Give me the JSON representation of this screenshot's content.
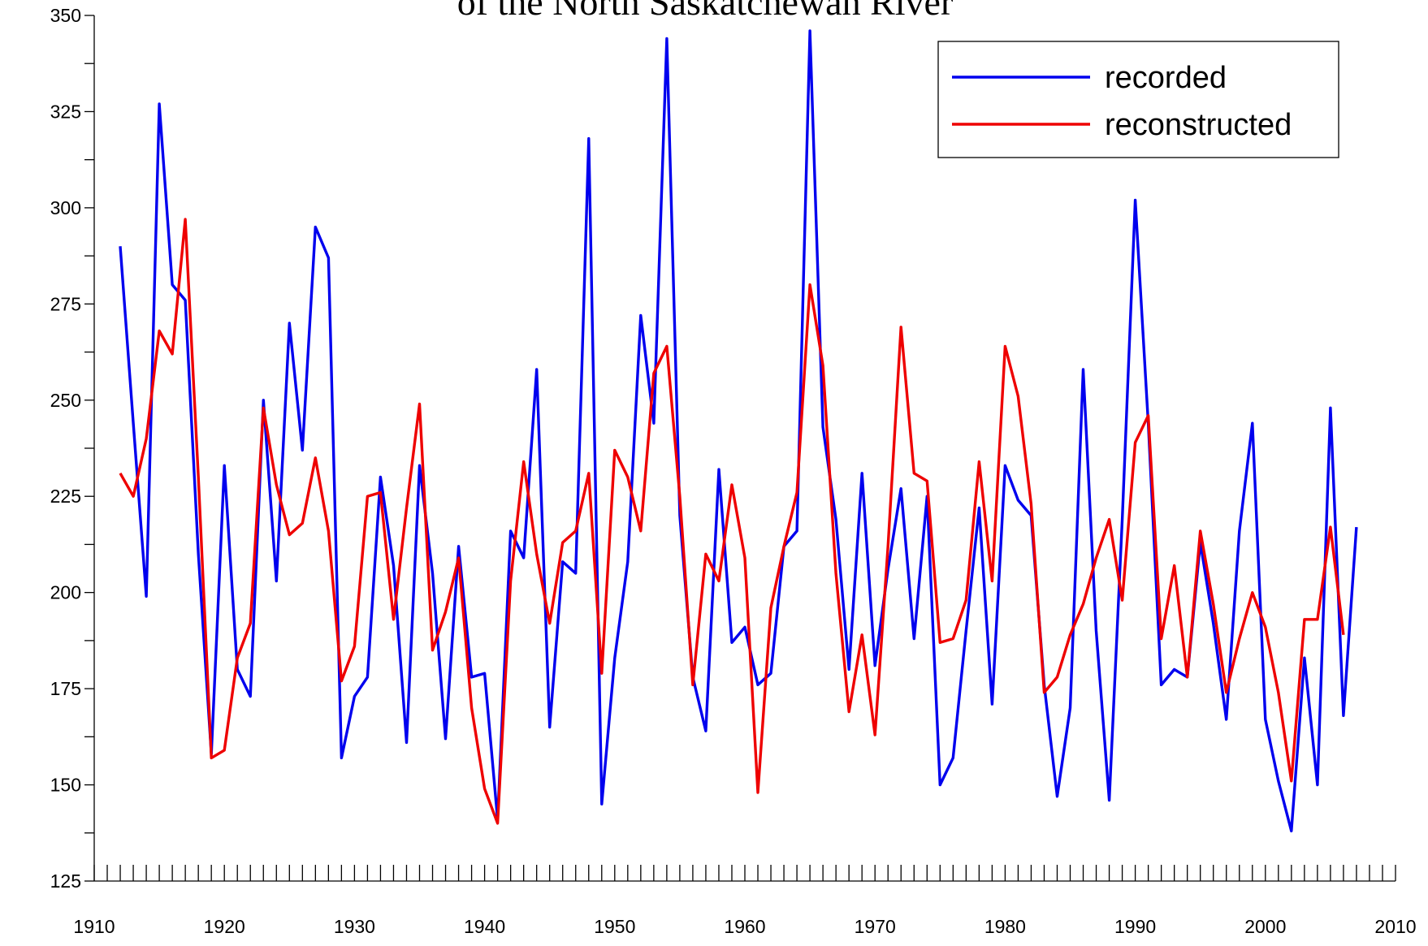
{
  "chart_data": {
    "type": "line",
    "title": "of the North Saskatchewan River",
    "x": [
      1912,
      1913,
      1914,
      1915,
      1916,
      1917,
      1918,
      1919,
      1920,
      1921,
      1922,
      1923,
      1924,
      1925,
      1926,
      1927,
      1928,
      1929,
      1930,
      1931,
      1932,
      1933,
      1934,
      1935,
      1936,
      1937,
      1938,
      1939,
      1940,
      1941,
      1942,
      1943,
      1944,
      1945,
      1946,
      1947,
      1948,
      1949,
      1950,
      1951,
      1952,
      1953,
      1954,
      1955,
      1956,
      1957,
      1958,
      1959,
      1960,
      1961,
      1962,
      1963,
      1964,
      1965,
      1966,
      1967,
      1968,
      1969,
      1970,
      1971,
      1972,
      1973,
      1974,
      1975,
      1976,
      1977,
      1978,
      1979,
      1980,
      1981,
      1982,
      1983,
      1984,
      1985,
      1986,
      1987,
      1988,
      1989,
      1990,
      1991,
      1992,
      1993,
      1994,
      1995,
      1996,
      1997,
      1998,
      1999,
      2000,
      2001,
      2002,
      2003,
      2004,
      2005,
      2006,
      2007
    ],
    "series": [
      {
        "name": "recorded",
        "color": "#0000ee",
        "values": [
          290,
          244,
          199,
          327,
          280,
          276,
          210,
          158,
          233,
          180,
          173,
          250,
          203,
          270,
          237,
          295,
          287,
          157,
          173,
          178,
          230,
          207,
          161,
          233,
          205,
          162,
          212,
          178,
          179,
          141,
          216,
          209,
          258,
          165,
          208,
          205,
          318,
          145,
          183,
          208,
          272,
          244,
          344,
          220,
          178,
          164,
          232,
          187,
          191,
          176,
          179,
          212,
          216,
          346,
          243,
          219,
          180,
          231,
          181,
          206,
          227,
          188,
          225,
          150,
          157,
          190,
          222,
          171,
          233,
          224,
          220,
          176,
          147,
          170,
          258,
          190,
          146,
          219,
          302,
          244,
          176,
          180,
          178,
          213,
          192,
          167,
          216,
          244,
          167,
          151,
          138,
          183,
          150,
          248,
          168,
          217
        ]
      },
      {
        "name": "reconstructed",
        "color": "#ee0000",
        "values": [
          231,
          225,
          240,
          268,
          262,
          297,
          230,
          157,
          159,
          183,
          192,
          248,
          228,
          215,
          218,
          235,
          216,
          177,
          186,
          225,
          226,
          193,
          222,
          249,
          185,
          195,
          209,
          170,
          149,
          140,
          203,
          234,
          210,
          192,
          213,
          216,
          231,
          179,
          237,
          230,
          216,
          257,
          264,
          225,
          176,
          210,
          203,
          228,
          209,
          148,
          196,
          212,
          226,
          280,
          259,
          205,
          169,
          189,
          163,
          212,
          269,
          231,
          229,
          187,
          188,
          198,
          234,
          203,
          264,
          251,
          223,
          174,
          178,
          189,
          197,
          209,
          219,
          198,
          239,
          246,
          188,
          207,
          178,
          216,
          197,
          174,
          188,
          200,
          191,
          174,
          151,
          193,
          193,
          217,
          189,
          null
        ]
      }
    ],
    "xlim": [
      1910,
      2010
    ],
    "xticks": [
      1910,
      1920,
      1930,
      1940,
      1950,
      1960,
      1970,
      1980,
      1990,
      2000,
      2010
    ],
    "ylim": [
      125,
      350
    ],
    "yticks": [
      125,
      150,
      175,
      200,
      225,
      250,
      275,
      300,
      325,
      350
    ],
    "legend": "upper right"
  }
}
